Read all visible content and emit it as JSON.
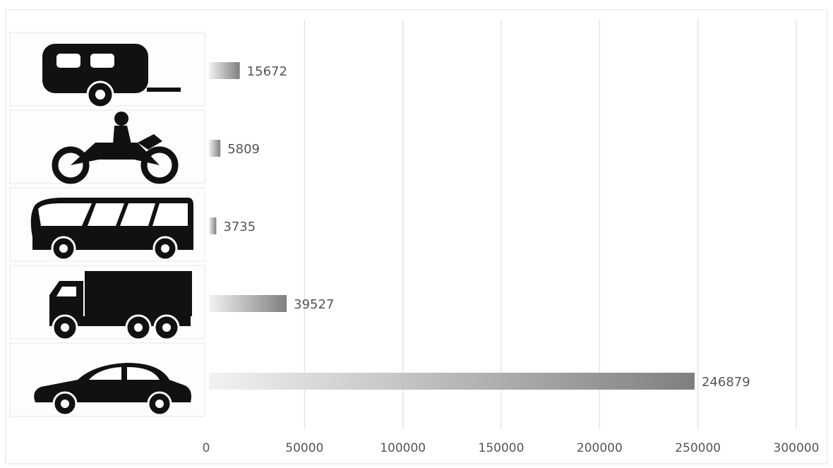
{
  "chart_data": {
    "type": "bar",
    "orientation": "horizontal",
    "title": "",
    "xlabel": "",
    "ylabel": "",
    "categories": [
      "caravan",
      "motorcycle",
      "bus",
      "truck",
      "car"
    ],
    "category_icons": [
      "caravan-icon",
      "motorcycle-icon",
      "bus-icon",
      "truck-icon",
      "car-icon"
    ],
    "values": [
      15672,
      5809,
      3735,
      39527,
      246879
    ],
    "data_labels": [
      "15672",
      "5809",
      "3735",
      "39527",
      "246879"
    ],
    "xlim": [
      0,
      300000
    ],
    "x_ticks": [
      0,
      50000,
      100000,
      150000,
      200000,
      250000,
      300000
    ],
    "x_tick_labels": [
      "0",
      "50000",
      "100000",
      "150000",
      "200000",
      "250000",
      "300000"
    ],
    "grid": "vertical",
    "legend": "none",
    "colors": {
      "bar_dark": "#7f7f7f",
      "bar_light": "#ececec",
      "icon": "#111111",
      "grid": "#d9d9d9",
      "text": "#555555"
    }
  }
}
